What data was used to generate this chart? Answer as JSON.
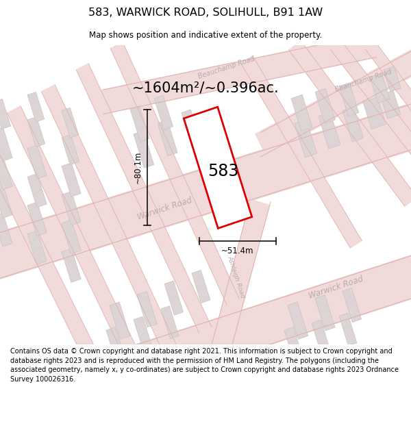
{
  "title": "583, WARWICK ROAD, SOLIHULL, B91 1AW",
  "subtitle": "Map shows position and indicative extent of the property.",
  "area_text": "~1604m²/~0.396ac.",
  "label_583": "583",
  "dim_width": "~51.4m",
  "dim_height": "~80.1m",
  "footer": "Contains OS data © Crown copyright and database right 2021. This information is subject to Crown copyright and database rights 2023 and is reproduced with the permission of HM Land Registry. The polygons (including the associated geometry, namely x, y co-ordinates) are subject to Crown copyright and database rights 2023 Ordnance Survey 100026316.",
  "bg_color": "#f7f0f0",
  "road_fill": "#f0dada",
  "road_edge": "#e0b0b0",
  "building_fill": "#ddd5d5",
  "building_edge": "#ccc0c0",
  "plot_color": "#dd0000",
  "road_label_color": "#bbaaaa",
  "dim_color": "#111111"
}
